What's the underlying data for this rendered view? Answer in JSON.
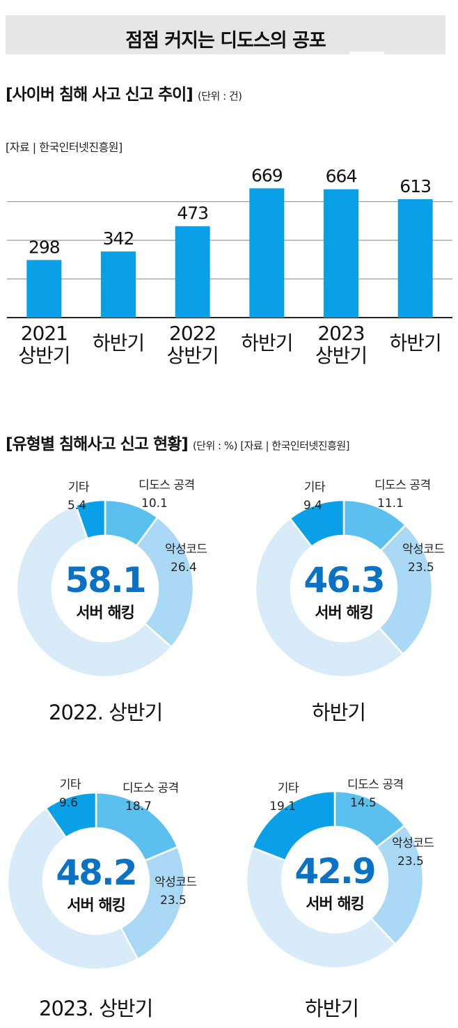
{
  "header": {
    "title": "점점 커지는 디도스의 공포"
  },
  "trend": {
    "title": "[사이버 침해 사고 신고 추이]",
    "unit": "(단위 : 건)",
    "source": "[자료 | 한국인터넷진흥원]"
  },
  "types": {
    "title": "[유형별 침해사고 신고 현황]",
    "unit_source": "(단위 : %) [자료 | 한국인터넷진흥원]"
  },
  "chart_data": [
    {
      "type": "bar",
      "categories": [
        [
          "2021",
          "상반기"
        ],
        [
          "하반기"
        ],
        [
          "2022",
          "상반기"
        ],
        [
          "하반기"
        ],
        [
          "2023",
          "상반기"
        ],
        [
          "하반기"
        ]
      ],
      "values": [
        298,
        342,
        473,
        669,
        664,
        613
      ],
      "ylim": [
        0,
        800
      ],
      "grid": true,
      "color": "#0aa0e8"
    },
    {
      "type": "pie",
      "caption": "2022. 상반기",
      "center_value": "58.1",
      "center_label": "서버 해킹",
      "slices": [
        {
          "name": "디도스 공격",
          "value": 10.1,
          "color": "#5cc0ee"
        },
        {
          "name": "악성코드",
          "value": 26.4,
          "color": "#a9d9f4"
        },
        {
          "name": "서버 해킹",
          "value": 58.1,
          "color": "#d7ecf8"
        },
        {
          "name": "기타",
          "value": 5.4,
          "color": "#0aa0e8"
        }
      ]
    },
    {
      "type": "pie",
      "caption": "하반기",
      "center_value": "46.3",
      "center_label": "서버 해킹",
      "slices": [
        {
          "name": "디도스 공격",
          "value": 11.1,
          "color": "#5cc0ee"
        },
        {
          "name": "악성코드",
          "value": 23.5,
          "color": "#a9d9f4"
        },
        {
          "name": "서버 해킹",
          "value": 46.3,
          "color": "#d7ecf8"
        },
        {
          "name": "기타",
          "value": 9.4,
          "color": "#0aa0e8"
        }
      ]
    },
    {
      "type": "pie",
      "caption": "2023. 상반기",
      "center_value": "48.2",
      "center_label": "서버 해킹",
      "slices": [
        {
          "name": "디도스 공격",
          "value": 18.7,
          "color": "#5cc0ee"
        },
        {
          "name": "악성코드",
          "value": 23.5,
          "color": "#a9d9f4"
        },
        {
          "name": "서버 해킹",
          "value": 48.2,
          "color": "#d7ecf8"
        },
        {
          "name": "기타",
          "value": 9.6,
          "color": "#0aa0e8"
        }
      ]
    },
    {
      "type": "pie",
      "caption": "하반기",
      "center_value": "42.9",
      "center_label": "서버 해킹",
      "slices": [
        {
          "name": "디도스 공격",
          "value": 14.5,
          "color": "#5cc0ee"
        },
        {
          "name": "악성코드",
          "value": 23.5,
          "color": "#a9d9f4"
        },
        {
          "name": "서버 해킹",
          "value": 42.9,
          "color": "#d7ecf8"
        },
        {
          "name": "기타",
          "value": 19.1,
          "color": "#0aa0e8"
        }
      ]
    }
  ]
}
